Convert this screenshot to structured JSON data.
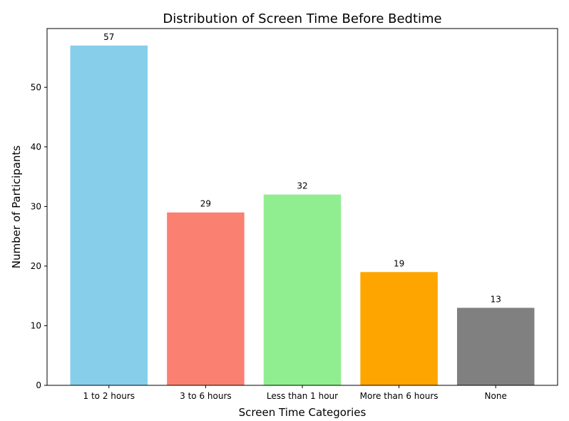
{
  "chart_data": {
    "type": "bar",
    "title": "Distribution of Screen Time Before Bedtime",
    "xlabel": "Screen Time Categories",
    "ylabel": "Number of Participants",
    "categories": [
      "1 to 2 hours",
      "3 to 6 hours",
      "Less than 1 hour",
      "More than 6 hours",
      "None"
    ],
    "values": [
      57,
      29,
      32,
      19,
      13
    ],
    "colors": [
      "#87CEEB",
      "#FA8072",
      "#90EE90",
      "#FFA500",
      "#808080"
    ],
    "ylim": [
      0,
      59.85
    ],
    "yticks": [
      0,
      10,
      20,
      30,
      40,
      50
    ],
    "grid": false,
    "legend": false
  }
}
